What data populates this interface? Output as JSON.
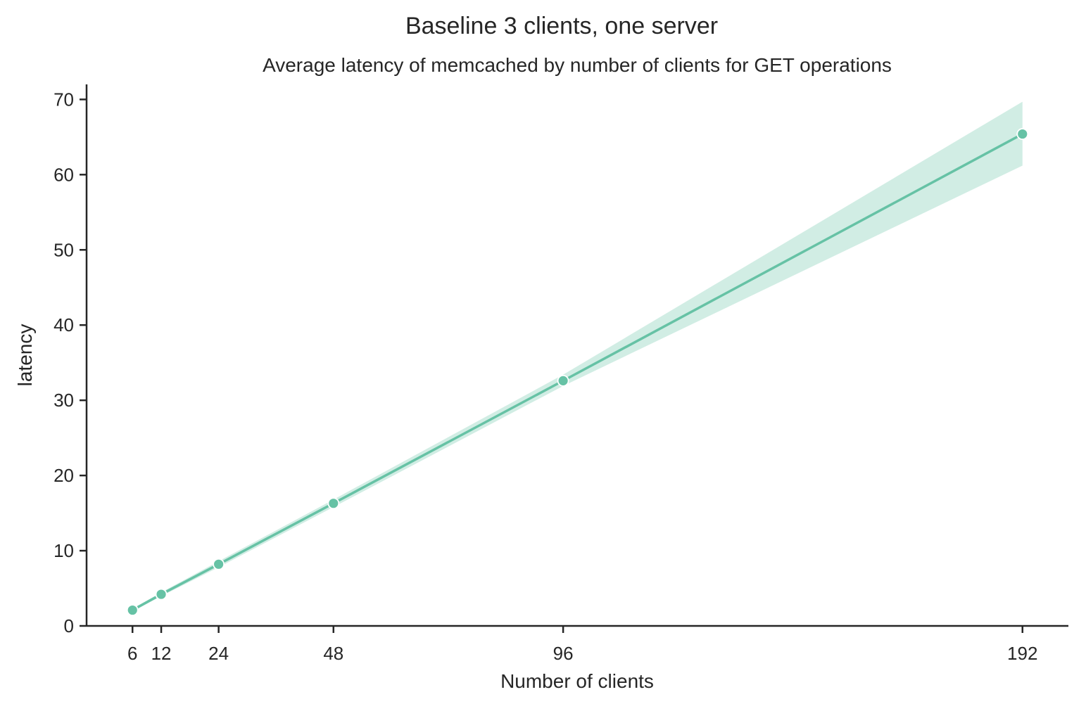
{
  "chart_data": {
    "type": "line",
    "title": "Baseline 3 clients, one server",
    "subtitle": "Average latency of memcached by number of clients for GET operations",
    "xlabel": "Number of clients",
    "ylabel": "latency",
    "x": [
      6,
      12,
      24,
      48,
      96,
      192
    ],
    "x_ticks": [
      "6",
      "12",
      "24",
      "48",
      "96",
      "192"
    ],
    "xlim": [
      -3.6,
      201.6
    ],
    "y_ticks": [
      0,
      10,
      20,
      30,
      40,
      50,
      60,
      70
    ],
    "ylim": [
      0,
      72
    ],
    "grid": false,
    "series": [
      {
        "values": [
          2.1,
          4.2,
          8.2,
          16.3,
          32.6,
          65.4
        ],
        "ci_lower": [
          1.95,
          3.95,
          7.8,
          15.8,
          31.9,
          61.2
        ],
        "ci_upper": [
          2.3,
          4.45,
          8.6,
          16.8,
          33.4,
          69.7
        ],
        "color": "#66c2a5",
        "band_color": "#66c2a5",
        "marker": "circle"
      }
    ]
  }
}
